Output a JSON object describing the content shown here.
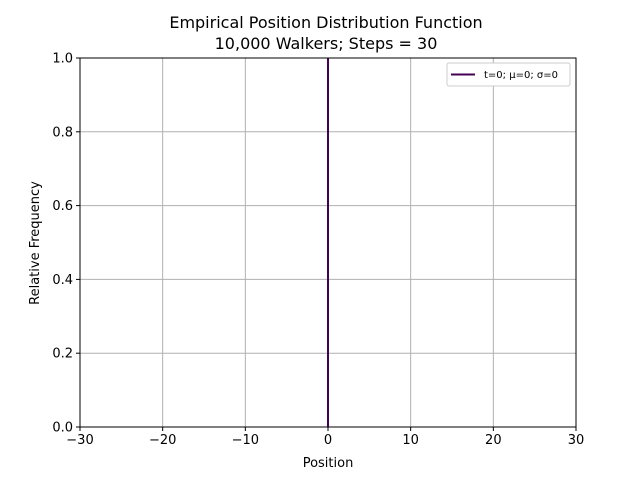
{
  "chart_data": {
    "type": "line",
    "title": "Empirical Position Distribution Function",
    "subtitle": "10,000 Walkers; Steps = 30",
    "xlabel": "Position",
    "ylabel": "Relative Frequency",
    "xlim": [
      -30,
      30
    ],
    "ylim": [
      0.0,
      1.0
    ],
    "xticks": [
      -30,
      -20,
      -10,
      0,
      10,
      20,
      30
    ],
    "xtick_labels": [
      "−30",
      "−20",
      "−10",
      "0",
      "10",
      "20",
      "30"
    ],
    "yticks": [
      0.0,
      0.2,
      0.4,
      0.6,
      0.8,
      1.0
    ],
    "ytick_labels": [
      "0.0",
      "0.2",
      "0.4",
      "0.6",
      "0.8",
      "1.0"
    ],
    "grid": true,
    "legend_position": "top-right",
    "series": [
      {
        "name": "t=0; μ=0; σ=0",
        "color": "#440154",
        "x": [
          0,
          0
        ],
        "y": [
          0.0,
          1.0
        ]
      }
    ]
  }
}
